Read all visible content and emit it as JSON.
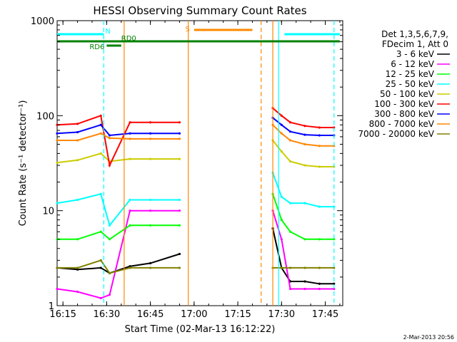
{
  "chart_data": {
    "type": "line",
    "title": "HESSI Observing Summary Count Rates",
    "xlabel": "Start Time (02-Mar-13 16:12:22)",
    "ylabel": "Count Rate (s⁻¹ detector⁻¹)",
    "ylim": [
      1,
      1000
    ],
    "yscale": "log",
    "xlim": [
      "16:13",
      "17:51"
    ],
    "x_ticks": [
      "16:15",
      "16:30",
      "16:45",
      "17:00",
      "17:15",
      "17:30",
      "17:45"
    ],
    "y_ticks": [
      "1",
      "10",
      "100",
      "1000"
    ],
    "grid": false,
    "legend_position": "right",
    "legend_header": [
      "Det 1,3,5,6,7,9,",
      "FDecim 1, Att 0"
    ],
    "timestamp": "2-Mar-2013 20:56",
    "x": [
      "16:13",
      "16:20",
      "16:28",
      "16:31",
      "16:38",
      "16:45",
      "16:55",
      "16:57",
      "17:24",
      "17:27",
      "17:30",
      "17:33",
      "17:38",
      "17:43",
      "17:48"
    ],
    "series": [
      {
        "name": "3 - 6 keV",
        "color": "#000000",
        "values": [
          2.5,
          2.4,
          2.5,
          2.2,
          2.6,
          2.8,
          3.5,
          null,
          null,
          6.5,
          2.5,
          1.8,
          1.8,
          1.7,
          1.7
        ]
      },
      {
        "name": "6 - 12 keV",
        "color": "#ff00ff",
        "values": [
          1.5,
          1.4,
          1.2,
          1.3,
          10,
          10,
          10,
          null,
          null,
          10,
          5,
          1.5,
          1.5,
          1.5,
          1.5
        ]
      },
      {
        "name": "12 - 25 keV",
        "color": "#00ff00",
        "values": [
          5,
          5,
          6,
          5,
          7,
          7,
          7,
          null,
          null,
          15,
          8,
          6,
          5,
          5,
          5
        ]
      },
      {
        "name": "25 - 50 keV",
        "color": "#00ffff",
        "values": [
          12,
          13,
          15,
          7,
          13,
          13,
          13,
          null,
          null,
          25,
          14,
          12,
          12,
          11,
          11
        ]
      },
      {
        "name": "50 - 100 keV",
        "color": "#cccc00",
        "values": [
          32,
          34,
          40,
          33,
          35,
          35,
          35,
          null,
          null,
          55,
          42,
          33,
          30,
          29,
          29
        ]
      },
      {
        "name": "100 - 300 keV",
        "color": "#ff0000",
        "values": [
          80,
          82,
          100,
          30,
          85,
          85,
          85,
          null,
          null,
          120,
          100,
          85,
          78,
          75,
          75
        ]
      },
      {
        "name": "300 - 800 keV",
        "color": "#0000ff",
        "values": [
          65,
          67,
          80,
          62,
          65,
          65,
          65,
          null,
          null,
          95,
          80,
          68,
          63,
          62,
          62
        ]
      },
      {
        "name": "800 - 7000 keV",
        "color": "#ff8800",
        "values": [
          55,
          55,
          65,
          58,
          57,
          57,
          57,
          null,
          null,
          80,
          65,
          55,
          50,
          48,
          48
        ]
      },
      {
        "name": "7000 - 20000 keV",
        "color": "#808000",
        "values": [
          2.5,
          2.5,
          3,
          2.2,
          2.5,
          2.5,
          2.5,
          null,
          null,
          2.5,
          2.5,
          2.5,
          2.5,
          2.5,
          2.5
        ]
      }
    ],
    "annotations": [
      {
        "label": "N",
        "color": "#00ffff",
        "x_start": "16:13",
        "x_end": "16:29"
      },
      {
        "label": "RD0",
        "color": "#008000",
        "x_start": "16:30",
        "x_end": "16:35"
      },
      {
        "label": "RD6",
        "color": "#008000",
        "x_start": "16:30",
        "x_end": "16:35"
      },
      {
        "label": "S",
        "color": "#ff8800",
        "x_start": "17:00",
        "x_end": "17:20"
      },
      {
        "label": "",
        "color": "#00ffff",
        "x_start": "17:31",
        "x_end": "17:50"
      },
      {
        "label": "",
        "color": "#008000",
        "x_start": "16:13",
        "x_end": "17:50"
      }
    ],
    "vertical_markers": [
      {
        "x": "16:29",
        "color": "#00ffff",
        "style": "dashed"
      },
      {
        "x": "16:36",
        "color": "#ff8800",
        "style": "solid"
      },
      {
        "x": "16:58",
        "color": "#ff8800",
        "style": "solid"
      },
      {
        "x": "17:23",
        "color": "#ff8800",
        "style": "dashed"
      },
      {
        "x": "17:27",
        "color": "#ff8800",
        "style": "solid"
      },
      {
        "x": "17:29",
        "color": "#00ffff",
        "style": "solid"
      },
      {
        "x": "17:48",
        "color": "#00ffff",
        "style": "dashed"
      }
    ]
  }
}
